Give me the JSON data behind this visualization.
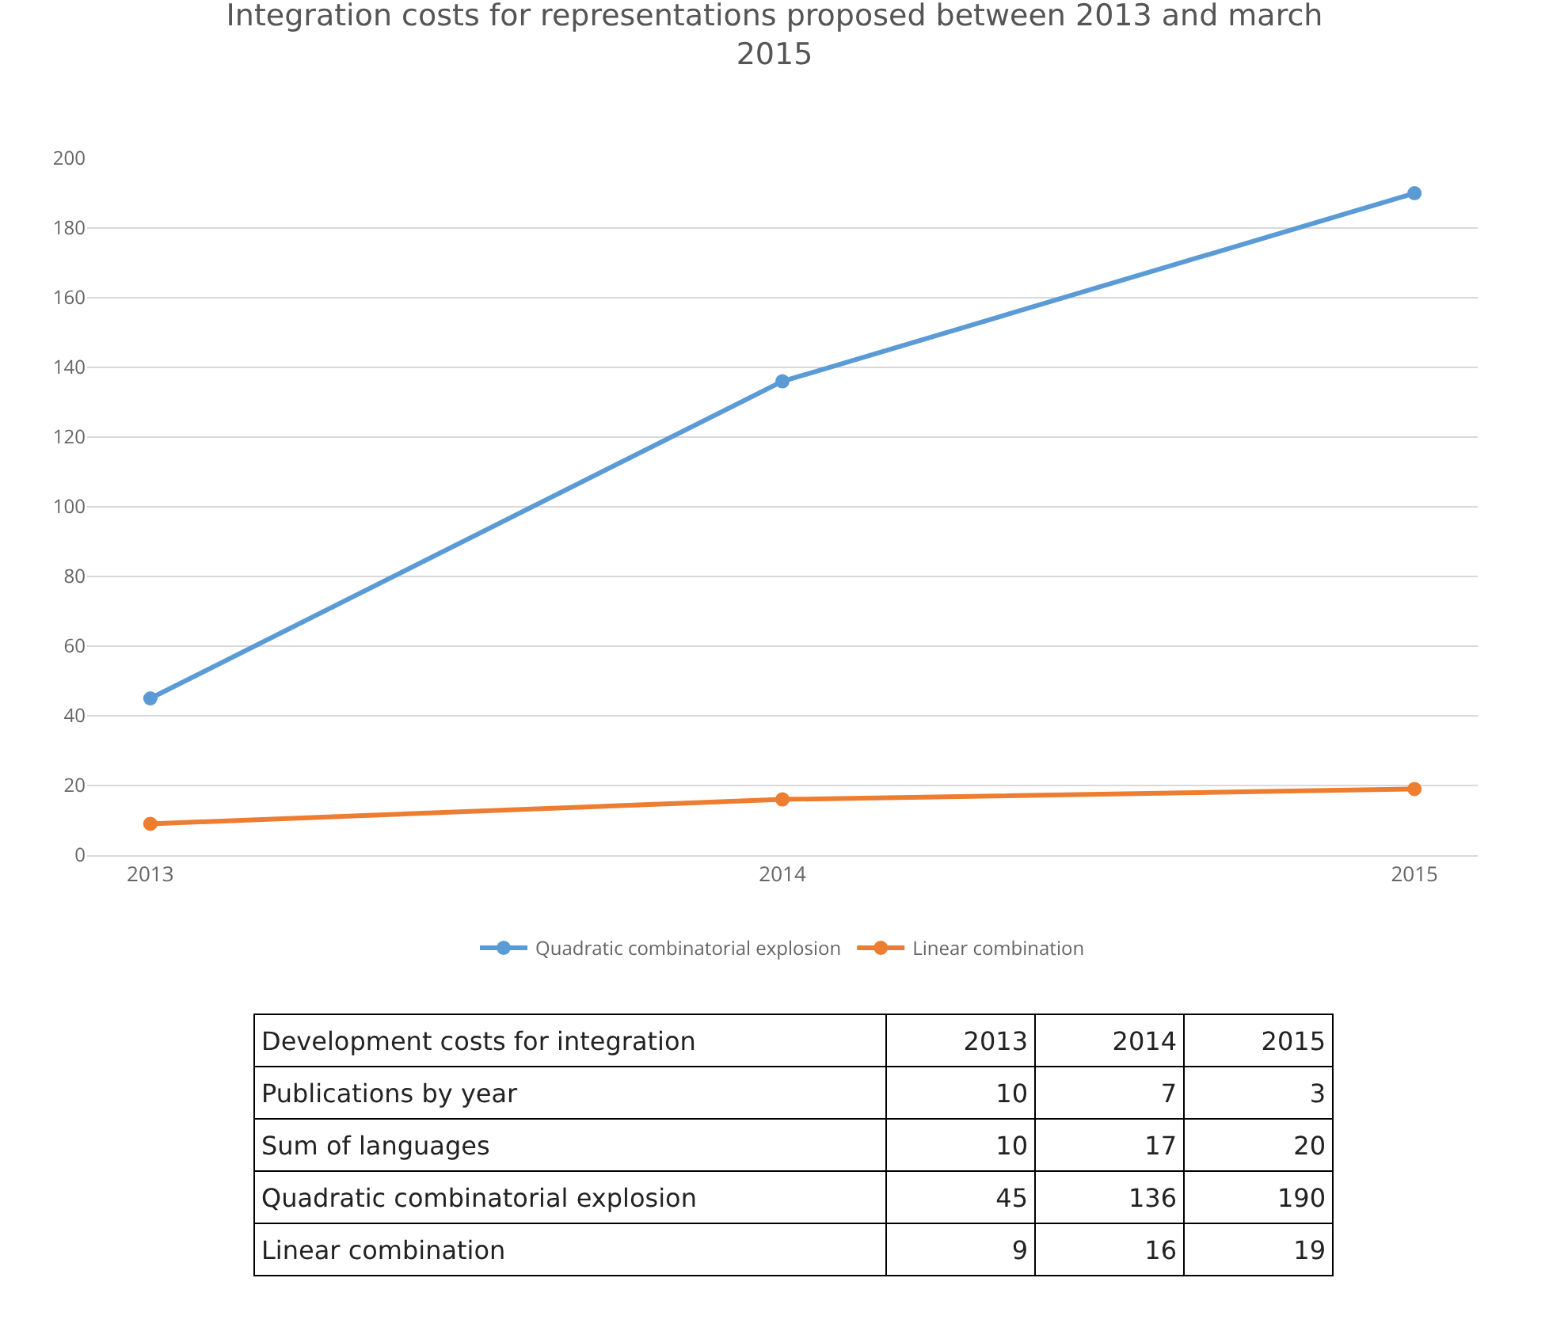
{
  "chart_data": {
    "type": "line",
    "title": "Integration costs for representations proposed between 2013 and march 2015",
    "categories": [
      "2013",
      "2014",
      "2015"
    ],
    "series": [
      {
        "name": "Quadratic combinatorial explosion",
        "color": "#5b9bd5",
        "values": [
          45,
          136,
          190
        ]
      },
      {
        "name": "Linear combination",
        "color": "#ed7d31",
        "values": [
          9,
          16,
          19
        ]
      }
    ],
    "ylim": [
      0,
      200
    ],
    "yticks": [
      0,
      20,
      40,
      60,
      80,
      100,
      120,
      140,
      160,
      180,
      200
    ],
    "grid": "y",
    "legend": "bottom",
    "marker": "circle",
    "line_style": "solid",
    "annotations": [
      "Development costs for integration",
      "Publications by year",
      "10",
      "7",
      "3",
      "Sum of languages",
      "10",
      "17",
      "20",
      "Quadratic combinatorial explosion",
      "45",
      "136",
      "190",
      "Linear combination",
      "9",
      "16",
      "19"
    ]
  }
}
